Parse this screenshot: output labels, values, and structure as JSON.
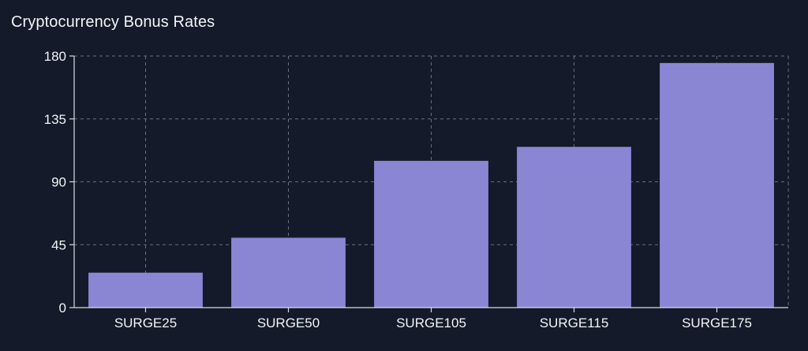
{
  "chart_data": {
    "type": "bar",
    "title": "Cryptocurrency Bonus Rates",
    "categories": [
      "SURGE25",
      "SURGE50",
      "SURGE105",
      "SURGE115",
      "SURGE175"
    ],
    "values": [
      25,
      50,
      105,
      115,
      175
    ],
    "ylim": [
      0,
      180
    ],
    "yticks": [
      0,
      45,
      90,
      135,
      180
    ],
    "xlabel": "",
    "ylabel": "",
    "grid": true,
    "colors": {
      "bar": "#8b86d4",
      "background": "#141a29",
      "grid": "#6b7080",
      "axis": "#d9dbe2",
      "text": "#f3f4f7"
    }
  }
}
